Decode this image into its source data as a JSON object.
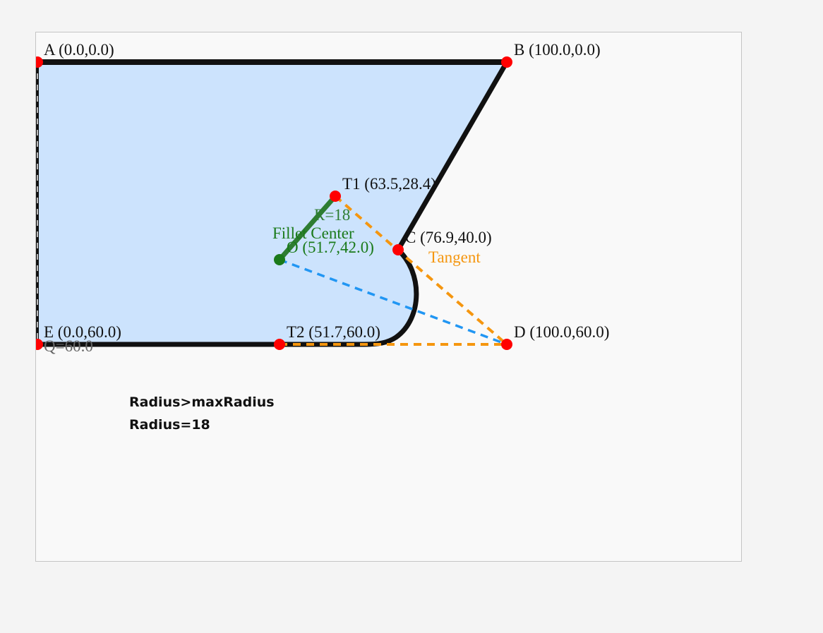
{
  "points": {
    "A": {
      "label": "A (0.0,0.0)"
    },
    "B": {
      "label": "B (100.0,0.0)"
    },
    "C": {
      "label": "C (76.9,40.0)"
    },
    "D": {
      "label": "D (100.0,60.0)"
    },
    "E": {
      "label": "E (0.0,60.0)"
    },
    "T1": {
      "label": "T1 (63.5,28.4)"
    },
    "T2": {
      "label": "T2 (51.7,60.0)"
    },
    "O": {
      "label": "O (51.7,42.0)"
    }
  },
  "annotations": {
    "radius": "R=18",
    "fillet_center": "Fillet Center",
    "tangent": "Tangent",
    "q": "Q=60.0"
  },
  "status": {
    "line1": "Radius>maxRadius",
    "line2": "Radius=18"
  },
  "colors": {
    "fill": "#cce3fd",
    "outline": "#111111",
    "vertex": "#ff0000",
    "center": "#1a7a1a",
    "radius_line": "#2e7d32",
    "tangent": "#f5960f",
    "center_to_D": "#2196f3"
  }
}
